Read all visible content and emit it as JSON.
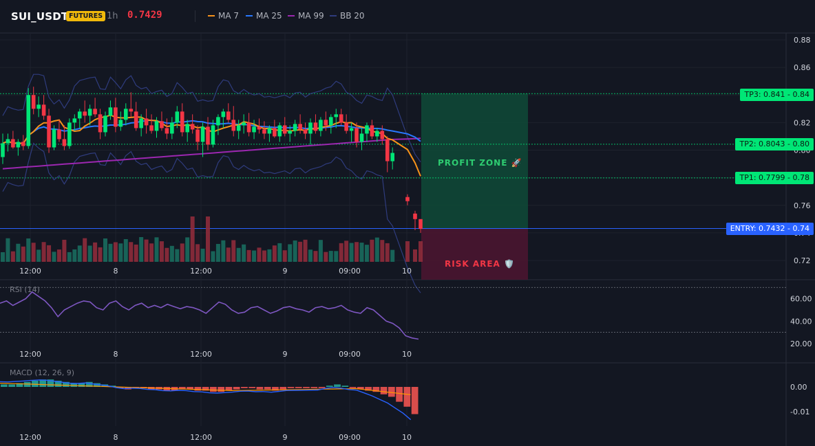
{
  "header": {
    "symbol": "SUI_USDT",
    "badge": "FUTURES",
    "timeframe": "1h",
    "last_price": "0.7429"
  },
  "indicators": [
    {
      "name": "MA 7",
      "color": "#f7931a"
    },
    {
      "name": "MA 25",
      "color": "#2979ff"
    },
    {
      "name": "MA 99",
      "color": "#9c27b0"
    },
    {
      "name": "BB 20",
      "color": "#2f3c7e"
    }
  ],
  "colors": {
    "up": "#089981",
    "up_bright": "#00e676",
    "down": "#f23645",
    "profit_zone": "#0f4a37",
    "risk_area": "#4a1530",
    "entry_line": "#2962ff",
    "tp_line": "#00e676",
    "rsi": "#7e57c2",
    "macd_line": "#2962ff",
    "signal_line": "#ff9800"
  },
  "levels": {
    "tp3": {
      "label": "TP3: 0.841",
      "price_label": "0.84"
    },
    "tp2": {
      "label": "TP2: 0.8043",
      "price_label": "0.80"
    },
    "tp1": {
      "label": "TP1: 0.7799",
      "price_label": "0.78"
    },
    "entry": {
      "label": "ENTRY: 0.7432",
      "price_label": "0.74"
    }
  },
  "zones": {
    "profit": "PROFIT ZONE 🚀",
    "risk": "RISK AREA 🛡️"
  },
  "price_axis": [
    "0.88",
    "0.86",
    "0.84",
    "0.82",
    "0.80",
    "0.78",
    "0.76",
    "0.74",
    "0.72"
  ],
  "time_axis": [
    "12:00",
    "8",
    "12:00",
    "9",
    "09:00",
    "10"
  ],
  "rsi": {
    "title": "RSI (14)",
    "axis": [
      "60.00",
      "40.00",
      "20.00"
    ],
    "upper": 70,
    "lower": 30
  },
  "macd": {
    "title": "MACD (12, 26, 9)",
    "axis": [
      "0.00",
      "-0.01"
    ]
  },
  "chart_data": {
    "type": "candlestick",
    "title": "SUI_USDT",
    "timeframe": "1h",
    "y_range": [
      0.72,
      0.885
    ],
    "candles_ohlc": [
      [
        0.795,
        0.812,
        0.79,
        0.805
      ],
      [
        0.805,
        0.812,
        0.799,
        0.808
      ],
      [
        0.808,
        0.814,
        0.801,
        0.802
      ],
      [
        0.802,
        0.808,
        0.796,
        0.806
      ],
      [
        0.806,
        0.811,
        0.8,
        0.803
      ],
      [
        0.803,
        0.845,
        0.801,
        0.84
      ],
      [
        0.84,
        0.846,
        0.826,
        0.83
      ],
      [
        0.83,
        0.839,
        0.824,
        0.833
      ],
      [
        0.833,
        0.84,
        0.822,
        0.825
      ],
      [
        0.825,
        0.83,
        0.798,
        0.802
      ],
      [
        0.802,
        0.818,
        0.8,
        0.815
      ],
      [
        0.815,
        0.822,
        0.806,
        0.808
      ],
      [
        0.808,
        0.818,
        0.8,
        0.803
      ],
      [
        0.803,
        0.823,
        0.801,
        0.82
      ],
      [
        0.82,
        0.826,
        0.814,
        0.823
      ],
      [
        0.823,
        0.83,
        0.816,
        0.828
      ],
      [
        0.828,
        0.836,
        0.82,
        0.825
      ],
      [
        0.825,
        0.833,
        0.818,
        0.83
      ],
      [
        0.83,
        0.838,
        0.824,
        0.826
      ],
      [
        0.826,
        0.83,
        0.808,
        0.813
      ],
      [
        0.813,
        0.828,
        0.81,
        0.825
      ],
      [
        0.825,
        0.836,
        0.822,
        0.831
      ],
      [
        0.831,
        0.838,
        0.813,
        0.817
      ],
      [
        0.817,
        0.828,
        0.814,
        0.822
      ],
      [
        0.822,
        0.834,
        0.818,
        0.83
      ],
      [
        0.83,
        0.842,
        0.824,
        0.828
      ],
      [
        0.828,
        0.835,
        0.814,
        0.816
      ],
      [
        0.816,
        0.826,
        0.81,
        0.823
      ],
      [
        0.823,
        0.83,
        0.812,
        0.818
      ],
      [
        0.818,
        0.826,
        0.812,
        0.814
      ],
      [
        0.814,
        0.824,
        0.809,
        0.821
      ],
      [
        0.821,
        0.828,
        0.814,
        0.816
      ],
      [
        0.816,
        0.823,
        0.808,
        0.812
      ],
      [
        0.812,
        0.824,
        0.808,
        0.82
      ],
      [
        0.82,
        0.832,
        0.816,
        0.828
      ],
      [
        0.828,
        0.834,
        0.81,
        0.813
      ],
      [
        0.813,
        0.822,
        0.806,
        0.819
      ],
      [
        0.819,
        0.826,
        0.812,
        0.815
      ],
      [
        0.815,
        0.818,
        0.8,
        0.806
      ],
      [
        0.806,
        0.82,
        0.795,
        0.817
      ],
      [
        0.817,
        0.824,
        0.8,
        0.804
      ],
      [
        0.804,
        0.822,
        0.802,
        0.818
      ],
      [
        0.818,
        0.826,
        0.811,
        0.824
      ],
      [
        0.824,
        0.83,
        0.816,
        0.828
      ],
      [
        0.828,
        0.834,
        0.82,
        0.822
      ],
      [
        0.822,
        0.832,
        0.81,
        0.814
      ],
      [
        0.814,
        0.822,
        0.808,
        0.818
      ],
      [
        0.818,
        0.826,
        0.812,
        0.82
      ],
      [
        0.82,
        0.827,
        0.81,
        0.813
      ],
      [
        0.813,
        0.822,
        0.808,
        0.817
      ],
      [
        0.817,
        0.823,
        0.812,
        0.815
      ],
      [
        0.815,
        0.821,
        0.808,
        0.812
      ],
      [
        0.812,
        0.818,
        0.806,
        0.816
      ],
      [
        0.816,
        0.822,
        0.809,
        0.81
      ],
      [
        0.81,
        0.82,
        0.806,
        0.818
      ],
      [
        0.818,
        0.824,
        0.81,
        0.812
      ],
      [
        0.812,
        0.818,
        0.806,
        0.814
      ],
      [
        0.814,
        0.822,
        0.81,
        0.819
      ],
      [
        0.819,
        0.826,
        0.812,
        0.815
      ],
      [
        0.815,
        0.82,
        0.808,
        0.812
      ],
      [
        0.812,
        0.823,
        0.804,
        0.82
      ],
      [
        0.82,
        0.826,
        0.812,
        0.814
      ],
      [
        0.814,
        0.824,
        0.81,
        0.822
      ],
      [
        0.822,
        0.828,
        0.814,
        0.818
      ],
      [
        0.818,
        0.826,
        0.812,
        0.824
      ],
      [
        0.824,
        0.83,
        0.816,
        0.826
      ],
      [
        0.826,
        0.83,
        0.818,
        0.82
      ],
      [
        0.82,
        0.826,
        0.812,
        0.814
      ],
      [
        0.814,
        0.82,
        0.806,
        0.816
      ],
      [
        0.816,
        0.82,
        0.802,
        0.806
      ],
      [
        0.806,
        0.816,
        0.8,
        0.812
      ],
      [
        0.812,
        0.82,
        0.806,
        0.818
      ],
      [
        0.818,
        0.822,
        0.808,
        0.81
      ],
      [
        0.81,
        0.816,
        0.806,
        0.814
      ],
      [
        0.814,
        0.818,
        0.804,
        0.808
      ],
      [
        0.808,
        0.81,
        0.784,
        0.792
      ],
      [
        0.792,
        0.802,
        0.786,
        0.798
      ],
      [
        0.766,
        0.768,
        0.76,
        0.763
      ],
      [
        0.754,
        0.756,
        0.742,
        0.75
      ],
      [
        0.75,
        0.75,
        0.74,
        0.7429
      ]
    ],
    "rsi_values": [
      56,
      58,
      54,
      57,
      60,
      66,
      62,
      58,
      52,
      44,
      50,
      53,
      56,
      58,
      57,
      52,
      50,
      56,
      58,
      53,
      50,
      54,
      56,
      52,
      54,
      52,
      55,
      53,
      51,
      53,
      52,
      50,
      47,
      52,
      57,
      55,
      50,
      47,
      48,
      52,
      53,
      50,
      47,
      49,
      52,
      53,
      51,
      50,
      48,
      52,
      53,
      51,
      52,
      54,
      50,
      48,
      47,
      52,
      50,
      45,
      40,
      38,
      34,
      27,
      25,
      24
    ],
    "macd_hist": [
      0.001,
      0.001,
      0.0015,
      0.002,
      0.0025,
      0.003,
      0.003,
      0.0025,
      0.002,
      0.0015,
      0.0015,
      0.002,
      0.0015,
      0.001,
      0.0005,
      -0.0005,
      -0.001,
      -0.0005,
      -0.0005,
      -0.001,
      -0.001,
      -0.0015,
      -0.0015,
      -0.001,
      -0.001,
      -0.0015,
      -0.0015,
      -0.002,
      -0.002,
      -0.0015,
      -0.001,
      -0.0005,
      -0.0005,
      -0.001,
      -0.001,
      -0.0015,
      -0.001,
      -0.0005,
      -0.0005,
      -0.0005,
      -0.0005,
      -0.0005,
      0.0005,
      0.001,
      0.0005,
      -0.0005,
      -0.001,
      -0.0015,
      -0.002,
      -0.003,
      -0.004,
      -0.006,
      -0.008,
      -0.011
    ]
  }
}
